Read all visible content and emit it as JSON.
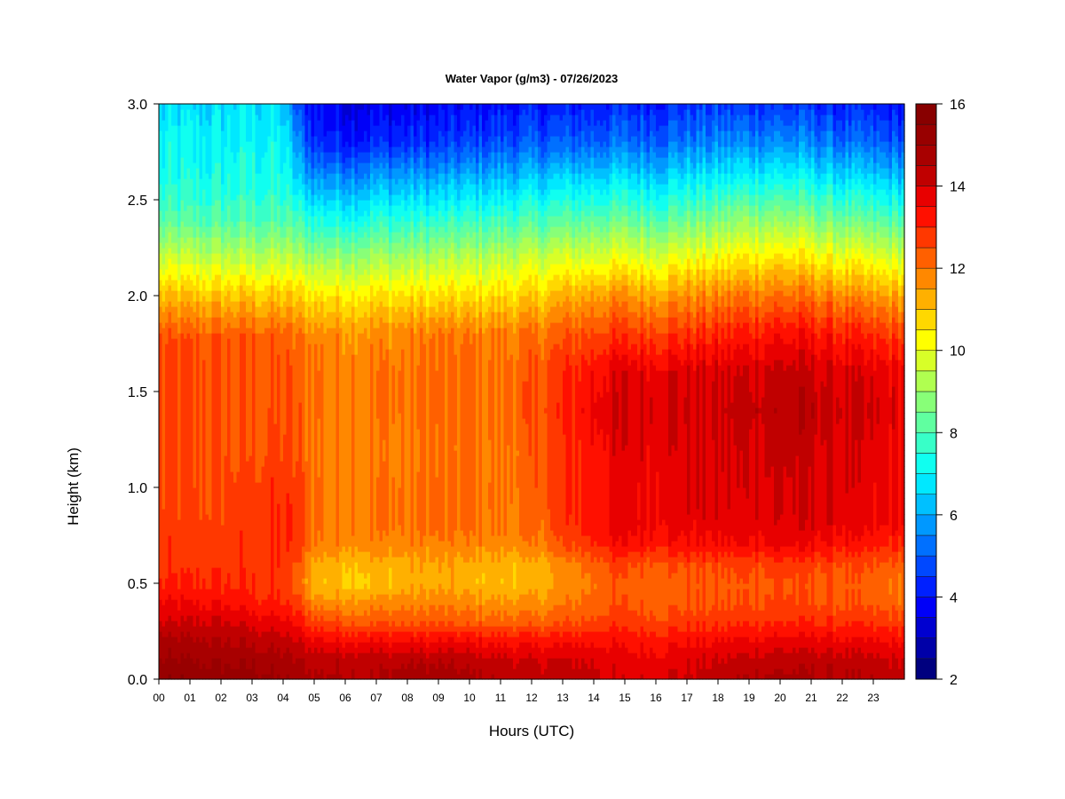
{
  "chart_data": {
    "type": "heatmap",
    "title": "Water Vapor (g/m3) - 07/26/2023",
    "xlabel": "Hours (UTC)",
    "ylabel": "Height (km)",
    "x_ticks": [
      "00",
      "01",
      "02",
      "03",
      "04",
      "05",
      "06",
      "07",
      "08",
      "09",
      "10",
      "11",
      "12",
      "13",
      "14",
      "15",
      "16",
      "17",
      "18",
      "19",
      "20",
      "21",
      "22",
      "23"
    ],
    "xlim": [
      0,
      24
    ],
    "y_ticks": [
      "0.0",
      "0.5",
      "1.0",
      "1.5",
      "2.0",
      "2.5",
      "3.0"
    ],
    "ylim": [
      0,
      3.0
    ],
    "colorbar": {
      "ticks": [
        "2",
        "4",
        "6",
        "8",
        "10",
        "12",
        "14",
        "16"
      ],
      "range": [
        2,
        16
      ],
      "levels": 28,
      "colors": [
        "#00007f",
        "#0000a8",
        "#0000d0",
        "#0000f8",
        "#0020ff",
        "#0048ff",
        "#0070ff",
        "#0098ff",
        "#00c0ff",
        "#00e8ff",
        "#10fff0",
        "#38ffc8",
        "#60ffa0",
        "#88ff78",
        "#b0ff50",
        "#d8ff28",
        "#ffff00",
        "#ffd800",
        "#ffb000",
        "#ff8800",
        "#ff6000",
        "#ff3800",
        "#ff1000",
        "#e80000",
        "#c00000",
        "#a80000",
        "#980000",
        "#880000"
      ]
    },
    "x_hours": [
      0,
      1,
      2,
      3,
      4,
      4.5,
      5,
      6,
      7,
      8,
      9,
      10,
      11,
      12,
      13,
      14,
      14.5,
      15,
      16,
      17,
      18,
      19,
      20,
      21,
      22,
      23,
      24
    ],
    "y_km": [
      0,
      0.1,
      0.2,
      0.3,
      0.4,
      0.5,
      0.6,
      0.7,
      0.8,
      0.9,
      1.0,
      1.2,
      1.4,
      1.6,
      1.8,
      2.0,
      2.2,
      2.4,
      2.6,
      2.8,
      3.0
    ],
    "values": [
      [
        15.5,
        15.0,
        14.7,
        14.0,
        13.5,
        13.0,
        12.8,
        12.8,
        12.7,
        12.6,
        12.6,
        12.5,
        12.5,
        12.5,
        12.4,
        11.0,
        9.5,
        8.0,
        7.3,
        7.0,
        6.5
      ],
      [
        15.4,
        15.0,
        14.6,
        14.0,
        13.5,
        13.0,
        12.8,
        12.8,
        12.7,
        12.6,
        12.6,
        12.5,
        12.5,
        12.5,
        12.3,
        11.0,
        9.5,
        8.0,
        7.3,
        7.0,
        6.6
      ],
      [
        15.3,
        14.9,
        14.5,
        14.0,
        13.4,
        13.0,
        12.8,
        12.8,
        12.7,
        12.6,
        12.6,
        12.5,
        12.5,
        12.5,
        12.3,
        11.0,
        9.4,
        8.0,
        7.3,
        7.0,
        6.6
      ],
      [
        15.2,
        14.9,
        14.4,
        13.8,
        13.2,
        12.9,
        12.8,
        12.8,
        12.8,
        12.7,
        12.7,
        12.5,
        12.5,
        12.5,
        12.3,
        11.0,
        9.4,
        8.0,
        7.4,
        7.1,
        6.8
      ],
      [
        15.0,
        14.7,
        14.2,
        13.6,
        13.0,
        12.8,
        12.9,
        12.9,
        13.0,
        12.9,
        12.8,
        12.6,
        12.5,
        12.4,
        12.2,
        10.9,
        9.4,
        8.0,
        7.3,
        7.0,
        6.4
      ],
      [
        14.8,
        14.5,
        14.0,
        13.3,
        12.6,
        12.2,
        12.4,
        12.7,
        12.8,
        12.8,
        12.6,
        12.4,
        12.3,
        12.2,
        12.0,
        10.8,
        9.2,
        7.8,
        6.5,
        5.5,
        4.6
      ],
      [
        14.6,
        14.3,
        13.7,
        12.7,
        11.8,
        11.1,
        11.3,
        11.9,
        12.1,
        12.1,
        12.1,
        12.0,
        12.1,
        12.1,
        11.8,
        10.6,
        9.0,
        7.4,
        5.8,
        4.4,
        3.9
      ],
      [
        14.6,
        14.4,
        13.5,
        12.4,
        11.7,
        11.0,
        11.2,
        11.8,
        12.0,
        12.0,
        12.0,
        11.9,
        12.0,
        12.0,
        11.7,
        10.6,
        9.0,
        7.3,
        5.8,
        4.2,
        3.6
      ],
      [
        14.5,
        14.3,
        13.5,
        12.4,
        11.7,
        11.0,
        11.2,
        11.8,
        12.0,
        12.0,
        12.0,
        11.9,
        12.0,
        12.0,
        11.7,
        10.6,
        9.1,
        7.5,
        6.0,
        4.3,
        3.6
      ],
      [
        14.8,
        14.4,
        13.5,
        12.4,
        11.8,
        11.2,
        11.3,
        11.8,
        12.0,
        12.0,
        12.0,
        11.9,
        12.0,
        12.0,
        11.8,
        10.6,
        9.1,
        7.5,
        6.0,
        4.4,
        3.6
      ],
      [
        14.8,
        14.4,
        13.5,
        12.4,
        11.8,
        11.3,
        11.4,
        11.8,
        12.1,
        12.1,
        12.1,
        12.0,
        12.1,
        12.1,
        11.9,
        10.6,
        9.2,
        7.5,
        6.0,
        4.4,
        3.7
      ],
      [
        14.6,
        14.3,
        13.5,
        12.3,
        11.7,
        11.2,
        11.3,
        11.8,
        12.0,
        12.1,
        12.1,
        12.0,
        12.1,
        12.1,
        11.9,
        10.6,
        9.3,
        7.7,
        6.2,
        4.6,
        3.8
      ],
      [
        14.4,
        14.1,
        13.4,
        12.2,
        11.6,
        11.1,
        11.2,
        11.7,
        11.9,
        12.0,
        12.0,
        12.0,
        12.1,
        12.1,
        11.9,
        10.7,
        9.4,
        7.8,
        6.3,
        4.8,
        4.0
      ],
      [
        14.3,
        14.0,
        13.3,
        12.2,
        11.6,
        11.1,
        11.2,
        11.8,
        12.0,
        12.1,
        12.2,
        12.2,
        12.4,
        12.3,
        12.0,
        10.8,
        9.5,
        7.9,
        6.4,
        4.9,
        4.0
      ],
      [
        14.3,
        14.0,
        13.3,
        12.4,
        11.9,
        11.5,
        11.7,
        12.4,
        12.7,
        12.8,
        12.8,
        12.8,
        13.0,
        12.9,
        12.3,
        11.2,
        9.7,
        8.1,
        6.6,
        5.0,
        4.1
      ],
      [
        14.2,
        14.0,
        13.4,
        12.6,
        12.2,
        12.0,
        12.3,
        13.0,
        13.3,
        13.3,
        13.3,
        13.4,
        13.6,
        13.4,
        12.6,
        11.5,
        9.9,
        8.2,
        6.7,
        5.1,
        4.2
      ],
      [
        14.0,
        13.8,
        13.4,
        12.8,
        12.4,
        12.3,
        12.6,
        13.3,
        13.6,
        13.6,
        13.6,
        13.7,
        13.9,
        13.7,
        12.8,
        11.6,
        10.0,
        8.3,
        6.8,
        5.2,
        4.2
      ],
      [
        13.9,
        13.7,
        13.3,
        12.8,
        12.4,
        12.3,
        12.6,
        13.4,
        13.7,
        13.7,
        13.7,
        13.8,
        14.0,
        13.8,
        12.8,
        11.6,
        10.0,
        8.3,
        6.8,
        5.2,
        4.3
      ],
      [
        13.9,
        13.7,
        13.3,
        12.7,
        12.3,
        12.2,
        12.5,
        13.3,
        13.7,
        13.7,
        13.7,
        13.8,
        14.0,
        13.8,
        12.8,
        11.5,
        9.9,
        8.2,
        6.7,
        5.2,
        4.3
      ],
      [
        14.1,
        13.9,
        13.4,
        12.8,
        12.4,
        12.3,
        12.6,
        13.4,
        13.7,
        13.8,
        13.8,
        13.9,
        14.1,
        13.9,
        12.9,
        11.7,
        10.1,
        8.4,
        6.9,
        5.4,
        4.4
      ],
      [
        14.3,
        14.0,
        13.5,
        12.8,
        12.4,
        12.3,
        12.6,
        13.4,
        13.7,
        13.8,
        13.8,
        13.9,
        14.1,
        13.9,
        13.0,
        11.8,
        10.2,
        8.6,
        7.0,
        5.5,
        4.5
      ],
      [
        14.6,
        14.2,
        13.6,
        12.9,
        12.5,
        12.4,
        12.7,
        13.5,
        13.8,
        13.9,
        13.9,
        14.0,
        14.3,
        14.0,
        13.2,
        12.0,
        10.5,
        8.9,
        7.2,
        5.6,
        4.5
      ],
      [
        14.7,
        14.3,
        13.7,
        13.0,
        12.6,
        12.5,
        12.8,
        13.6,
        13.9,
        14.0,
        14.0,
        14.2,
        14.4,
        14.2,
        13.4,
        12.1,
        10.6,
        8.9,
        7.3,
        5.7,
        4.5
      ],
      [
        14.6,
        14.3,
        13.7,
        13.0,
        12.5,
        12.4,
        12.7,
        13.5,
        13.9,
        14.0,
        14.0,
        14.1,
        14.3,
        14.1,
        13.3,
        12.0,
        10.4,
        8.7,
        7.1,
        5.5,
        4.4
      ],
      [
        14.5,
        14.2,
        13.6,
        12.9,
        12.4,
        12.3,
        12.6,
        13.3,
        13.7,
        13.8,
        13.8,
        13.9,
        14.1,
        13.9,
        13.1,
        11.8,
        10.1,
        8.4,
        6.8,
        5.2,
        4.2
      ],
      [
        14.4,
        14.1,
        13.5,
        12.8,
        12.3,
        12.2,
        12.4,
        13.1,
        13.5,
        13.6,
        13.6,
        13.7,
        13.9,
        13.7,
        12.8,
        11.5,
        9.8,
        8.1,
        6.5,
        5.0,
        4.0
      ],
      [
        14.3,
        14.0,
        13.4,
        12.7,
        12.2,
        12.1,
        12.3,
        13.0,
        13.4,
        13.5,
        13.5,
        13.6,
        13.8,
        13.6,
        12.7,
        11.4,
        9.7,
        8.0,
        6.4,
        4.9,
        4.0
      ]
    ]
  }
}
